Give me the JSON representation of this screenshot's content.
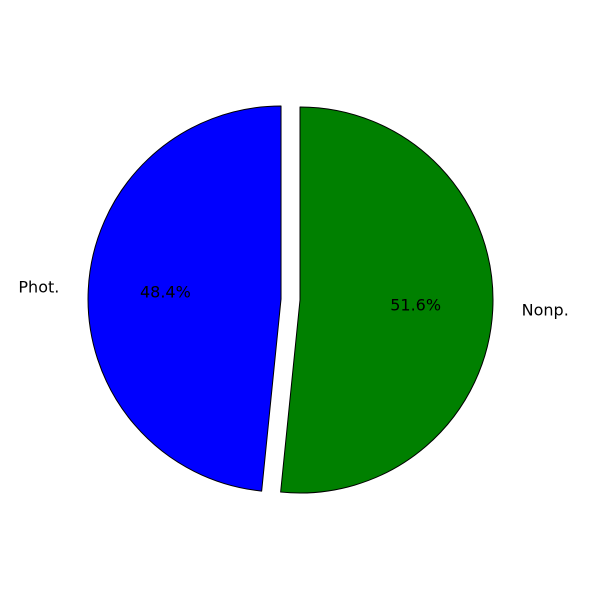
{
  "chart_data": {
    "type": "pie",
    "title": "",
    "labels": [
      "Phot.",
      "Nonp."
    ],
    "values": [
      48.4,
      51.6
    ],
    "percent_labels": [
      "48.4%",
      "51.6%"
    ],
    "colors": [
      "#0000ff",
      "#008000"
    ],
    "edge_color": "#000000",
    "exploded_slice": "Phot.",
    "start_angle_deg": 90,
    "direction": "counterclockwise",
    "legend": "none"
  }
}
